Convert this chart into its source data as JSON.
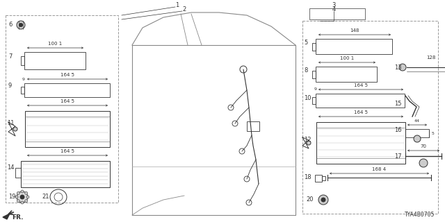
{
  "bg_color": "#ffffff",
  "diagram_code": "TYA4B0705",
  "fig_w": 6.4,
  "fig_h": 3.2,
  "dpi": 100,
  "lc": "#444444",
  "mc": "#666666",
  "dc": "#333333",
  "gc": "#999999"
}
